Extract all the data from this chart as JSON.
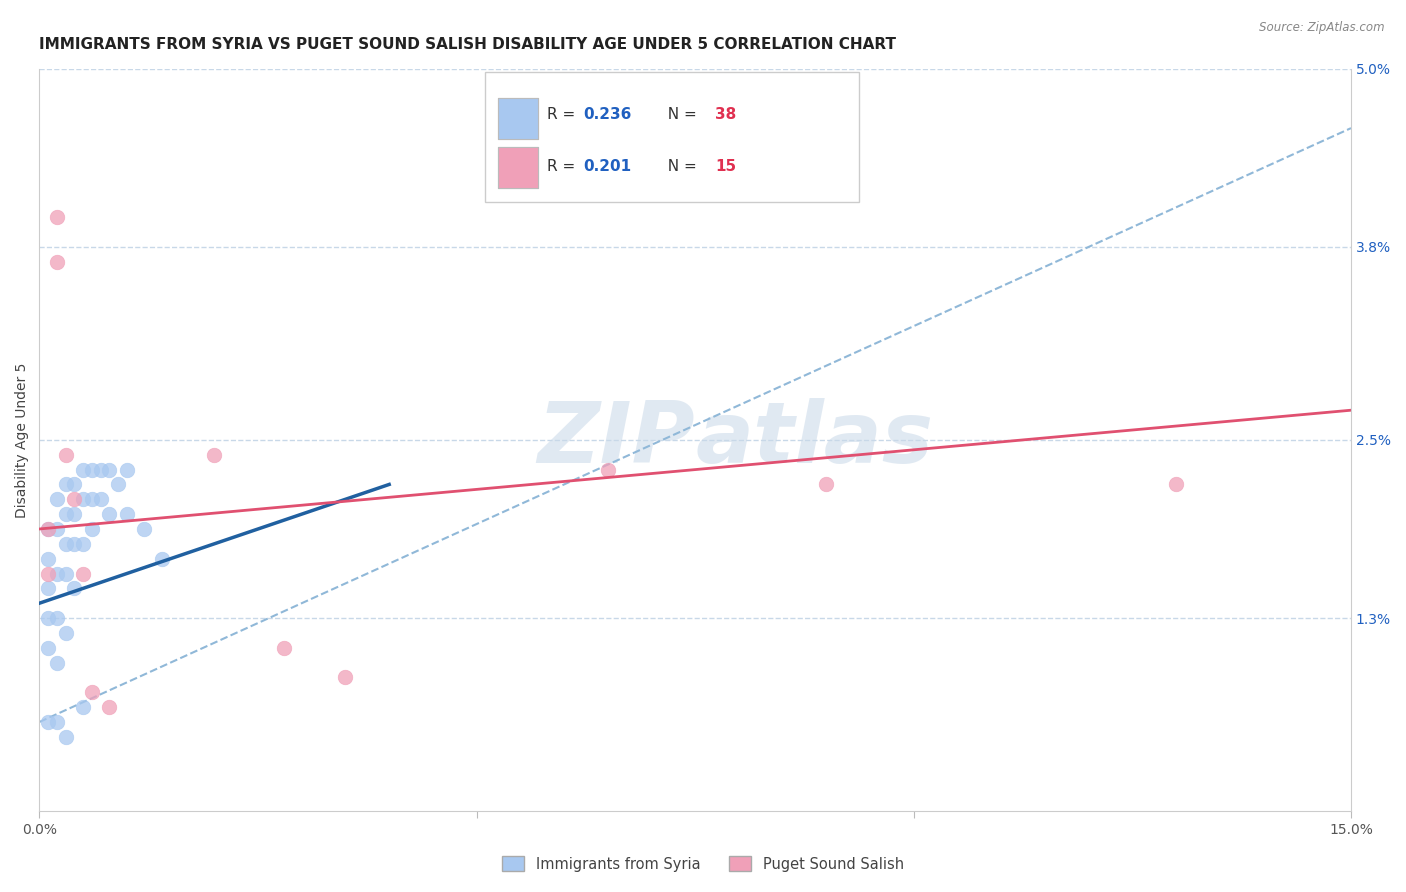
{
  "title": "IMMIGRANTS FROM SYRIA VS PUGET SOUND SALISH DISABILITY AGE UNDER 5 CORRELATION CHART",
  "source": "Source: ZipAtlas.com",
  "ylabel": "Disability Age Under 5",
  "xlim": [
    0,
    0.15
  ],
  "ylim": [
    0,
    0.05
  ],
  "xticks": [
    0.0,
    0.05,
    0.1,
    0.15
  ],
  "xtick_labels": [
    "0.0%",
    "",
    "",
    "15.0%"
  ],
  "yticks": [
    0.0,
    0.013,
    0.025,
    0.038,
    0.05
  ],
  "ytick_labels_right": [
    "",
    "1.3%",
    "2.5%",
    "3.8%",
    "5.0%"
  ],
  "legend_r1": "0.236",
  "legend_n1": "38",
  "legend_r2": "0.201",
  "legend_n2": "15",
  "legend_label1": "Immigrants from Syria",
  "legend_label2": "Puget Sound Salish",
  "blue_color": "#a8c8f0",
  "pink_color": "#f0a0b8",
  "blue_line_color": "#2060a0",
  "pink_line_color": "#e05070",
  "dashed_line_color": "#90b8d8",
  "r_value_color": "#2060c0",
  "n_value_color": "#e03050",
  "title_fontsize": 11,
  "axis_label_fontsize": 10,
  "tick_fontsize": 10,
  "marker_size": 110,
  "blue_scatter_x": [
    0.001,
    0.001,
    0.001,
    0.001,
    0.001,
    0.002,
    0.002,
    0.002,
    0.002,
    0.002,
    0.003,
    0.003,
    0.003,
    0.003,
    0.003,
    0.004,
    0.004,
    0.004,
    0.004,
    0.005,
    0.005,
    0.005,
    0.006,
    0.006,
    0.006,
    0.007,
    0.007,
    0.008,
    0.008,
    0.009,
    0.01,
    0.01,
    0.012,
    0.014,
    0.001,
    0.002,
    0.003,
    0.005
  ],
  "blue_scatter_y": [
    0.019,
    0.017,
    0.015,
    0.013,
    0.011,
    0.021,
    0.019,
    0.016,
    0.013,
    0.01,
    0.022,
    0.02,
    0.018,
    0.016,
    0.012,
    0.022,
    0.02,
    0.018,
    0.015,
    0.023,
    0.021,
    0.018,
    0.023,
    0.021,
    0.019,
    0.023,
    0.021,
    0.023,
    0.02,
    0.022,
    0.023,
    0.02,
    0.019,
    0.017,
    0.006,
    0.006,
    0.005,
    0.007
  ],
  "pink_scatter_x": [
    0.001,
    0.001,
    0.002,
    0.002,
    0.003,
    0.004,
    0.005,
    0.006,
    0.008,
    0.02,
    0.028,
    0.035,
    0.065,
    0.09,
    0.13
  ],
  "pink_scatter_y": [
    0.019,
    0.016,
    0.04,
    0.037,
    0.024,
    0.021,
    0.016,
    0.008,
    0.007,
    0.024,
    0.011,
    0.009,
    0.023,
    0.022,
    0.022
  ],
  "blue_trend_x": [
    0.0,
    0.04
  ],
  "blue_trend_y": [
    0.014,
    0.022
  ],
  "pink_trend_x": [
    0.0,
    0.15
  ],
  "pink_trend_y": [
    0.019,
    0.027
  ],
  "dash_trend_x": [
    0.0,
    0.15
  ],
  "dash_trend_y": [
    0.006,
    0.046
  ],
  "background_color": "#ffffff",
  "grid_color": "#c8d8e8",
  "watermark_zip": "ZIP",
  "watermark_atlas": "atlas"
}
